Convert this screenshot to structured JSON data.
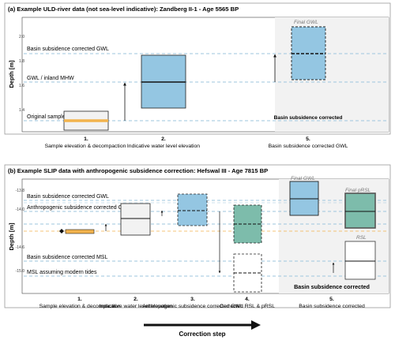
{
  "panel_a": {
    "title": "(a) Example ULD-river data (not sea-level indicative): Zandberg II-1 - Age 5565 BP",
    "ylabel": "Depth [m]",
    "ticks": [
      "2.0",
      "1.8",
      "1.6",
      "1.4"
    ],
    "line_labels": [
      "Basin subsidence corrected GWL",
      "GWL / inland MHW"
    ],
    "sample_label": "Original sample elevation",
    "final_label": "Final GWL",
    "shaded_label": "Basin subsidence corrected",
    "steps": [
      {
        "num": "1.",
        "label": "Sample elevation & decompaction"
      },
      {
        "num": "2.",
        "label": "Indicative water level elevation"
      },
      {
        "num": "5.",
        "label": "Basin subsidence corrected GWL"
      }
    ]
  },
  "panel_b": {
    "title": "(b) Example SLIP data with anthropogenic subsidence correction: Hefswal III - Age 7815 BP",
    "ylabel": "Depth [m]",
    "ticks": [
      "-13.8",
      "-14.0",
      "-14.6",
      "-15.0"
    ],
    "line_labels": [
      "Basin subsidence corrected GWL",
      "Anthropogenic subsidence corrected GWL",
      "Basin subsidence corrected MSL",
      "MSL assuming modern tides"
    ],
    "final_gwl": "Final GWL",
    "final_psrl": "Final pRSL",
    "rsl": "RSL",
    "shaded_label": "Basin subsidence corrected",
    "steps": [
      {
        "num": "1.",
        "label": "Sample elevation & decompaction"
      },
      {
        "num": "2.",
        "label": "Indicative water level elevation"
      },
      {
        "num": "3.",
        "label": "Anthropogenic subsidence corrected GWL"
      },
      {
        "num": "4.",
        "label": "Corrected RSL & pRSL"
      },
      {
        "num": "5.",
        "label": "Basin subsidence corrected"
      }
    ]
  },
  "footer": {
    "correction_step": "Correction step"
  },
  "colors": {
    "blue": "#94c6e2",
    "green": "#7dbcab",
    "orange": "#f2b34d",
    "grey": "#f2f2f2",
    "dash": "#9ec6de"
  }
}
